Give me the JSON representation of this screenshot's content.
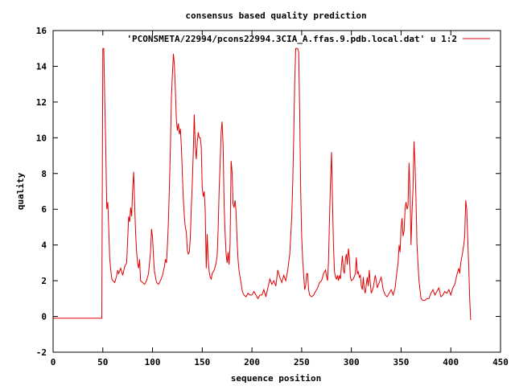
{
  "chart_data": {
    "type": "line",
    "title": "consensus based quality prediction",
    "xlabel": "sequence position",
    "ylabel": "quality",
    "xlim": [
      0,
      450
    ],
    "ylim": [
      -2,
      16
    ],
    "xticks": [
      0,
      50,
      100,
      150,
      200,
      250,
      300,
      350,
      400,
      450
    ],
    "yticks": [
      -2,
      0,
      2,
      4,
      6,
      8,
      10,
      12,
      14,
      16
    ],
    "legend_position": "top-right",
    "grid": false,
    "series": [
      {
        "name": "'PCONSMETA/22994/pcons22994.3CIA_A.ffas.9.pdb.local.dat' u 1:2",
        "color": "#e00000",
        "points": [
          [
            0,
            -0.1
          ],
          [
            48,
            -0.1
          ],
          [
            49,
            -0.1
          ],
          [
            50,
            15
          ],
          [
            51,
            15
          ],
          [
            52,
            12
          ],
          [
            53,
            9.3
          ],
          [
            54,
            6
          ],
          [
            55,
            6.4
          ],
          [
            56,
            4.8
          ],
          [
            57,
            3.2
          ],
          [
            58,
            2.6
          ],
          [
            59,
            2.1
          ],
          [
            60,
            2.0
          ],
          [
            62,
            1.9
          ],
          [
            64,
            2.3
          ],
          [
            65,
            2.6
          ],
          [
            66,
            2.4
          ],
          [
            68,
            2.7
          ],
          [
            70,
            2.3
          ],
          [
            72,
            2.8
          ],
          [
            74,
            3.0
          ],
          [
            76,
            5.6
          ],
          [
            77,
            5.3
          ],
          [
            78,
            6.1
          ],
          [
            79,
            5.6
          ],
          [
            80,
            7.1
          ],
          [
            81,
            8.1
          ],
          [
            82,
            6.3
          ],
          [
            83,
            4.6
          ],
          [
            84,
            3.6
          ],
          [
            85,
            3.0
          ],
          [
            86,
            2.7
          ],
          [
            87,
            3.2
          ],
          [
            88,
            2.0
          ],
          [
            90,
            1.9
          ],
          [
            92,
            1.8
          ],
          [
            94,
            2.0
          ],
          [
            96,
            2.4
          ],
          [
            97,
            3.0
          ],
          [
            98,
            3.6
          ],
          [
            99,
            4.9
          ],
          [
            100,
            4.4
          ],
          [
            101,
            3.3
          ],
          [
            102,
            2.5
          ],
          [
            103,
            2.2
          ],
          [
            104,
            1.9
          ],
          [
            106,
            1.8
          ],
          [
            108,
            2.0
          ],
          [
            110,
            2.3
          ],
          [
            112,
            2.8
          ],
          [
            113,
            3.2
          ],
          [
            114,
            3.0
          ],
          [
            115,
            4.0
          ],
          [
            116,
            5.3
          ],
          [
            117,
            7.4
          ],
          [
            118,
            9.5
          ],
          [
            119,
            12.2
          ],
          [
            120,
            13.6
          ],
          [
            121,
            14.7
          ],
          [
            122,
            14.1
          ],
          [
            123,
            12.6
          ],
          [
            124,
            11.0
          ],
          [
            125,
            10.4
          ],
          [
            126,
            10.8
          ],
          [
            127,
            10.2
          ],
          [
            128,
            10.5
          ],
          [
            129,
            9.5
          ],
          [
            130,
            8.0
          ],
          [
            131,
            6.5
          ],
          [
            132,
            5.6
          ],
          [
            133,
            5.0
          ],
          [
            134,
            4.7
          ],
          [
            135,
            3.7
          ],
          [
            136,
            3.5
          ],
          [
            137,
            3.6
          ],
          [
            138,
            4.4
          ],
          [
            139,
            6.0
          ],
          [
            140,
            7.5
          ],
          [
            141,
            9.2
          ],
          [
            142,
            11.3
          ],
          [
            143,
            9.5
          ],
          [
            144,
            8.8
          ],
          [
            145,
            9.8
          ],
          [
            146,
            10.3
          ],
          [
            147,
            10.0
          ],
          [
            148,
            10.0
          ],
          [
            149,
            9.5
          ],
          [
            150,
            7.2
          ],
          [
            151,
            6.7
          ],
          [
            152,
            7.0
          ],
          [
            153,
            6.0
          ],
          [
            154,
            2.7
          ],
          [
            155,
            4.6
          ],
          [
            156,
            3.2
          ],
          [
            157,
            2.5
          ],
          [
            158,
            2.2
          ],
          [
            159,
            2.1
          ],
          [
            160,
            2.4
          ],
          [
            162,
            2.6
          ],
          [
            164,
            3.0
          ],
          [
            165,
            3.4
          ],
          [
            166,
            4.9
          ],
          [
            167,
            7.0
          ],
          [
            168,
            8.6
          ],
          [
            169,
            10.3
          ],
          [
            170,
            10.9
          ],
          [
            171,
            9.5
          ],
          [
            172,
            6.3
          ],
          [
            173,
            4.6
          ],
          [
            174,
            3.5
          ],
          [
            175,
            3.0
          ],
          [
            176,
            3.6
          ],
          [
            177,
            2.9
          ],
          [
            178,
            4.0
          ],
          [
            179,
            8.7
          ],
          [
            180,
            8.1
          ],
          [
            181,
            6.3
          ],
          [
            182,
            6.1
          ],
          [
            183,
            6.5
          ],
          [
            184,
            5.9
          ],
          [
            185,
            4.3
          ],
          [
            186,
            3.2
          ],
          [
            187,
            2.6
          ],
          [
            188,
            2.2
          ],
          [
            189,
            1.9
          ],
          [
            190,
            1.5
          ],
          [
            191,
            1.3
          ],
          [
            192,
            1.2
          ],
          [
            194,
            1.1
          ],
          [
            196,
            1.3
          ],
          [
            198,
            1.2
          ],
          [
            200,
            1.2
          ],
          [
            202,
            1.4
          ],
          [
            204,
            1.2
          ],
          [
            206,
            1.0
          ],
          [
            208,
            1.2
          ],
          [
            210,
            1.2
          ],
          [
            212,
            1.5
          ],
          [
            214,
            1.1
          ],
          [
            216,
            1.6
          ],
          [
            218,
            2.1
          ],
          [
            220,
            1.8
          ],
          [
            222,
            2.0
          ],
          [
            224,
            1.7
          ],
          [
            226,
            2.6
          ],
          [
            228,
            2.2
          ],
          [
            230,
            1.9
          ],
          [
            232,
            2.3
          ],
          [
            234,
            2.0
          ],
          [
            236,
            2.6
          ],
          [
            238,
            3.5
          ],
          [
            240,
            5.5
          ],
          [
            241,
            7.5
          ],
          [
            242,
            10.0
          ],
          [
            243,
            13.0
          ],
          [
            244,
            15.0
          ],
          [
            246,
            15.0
          ],
          [
            247,
            14.8
          ],
          [
            248,
            11.5
          ],
          [
            249,
            7.0
          ],
          [
            250,
            4.5
          ],
          [
            251,
            3.2
          ],
          [
            252,
            2.3
          ],
          [
            253,
            1.5
          ],
          [
            254,
            1.7
          ],
          [
            255,
            2.4
          ],
          [
            256,
            2.4
          ],
          [
            257,
            1.5
          ],
          [
            258,
            1.2
          ],
          [
            260,
            1.1
          ],
          [
            262,
            1.2
          ],
          [
            264,
            1.4
          ],
          [
            266,
            1.6
          ],
          [
            268,
            1.9
          ],
          [
            270,
            2.0
          ],
          [
            272,
            2.4
          ],
          [
            274,
            2.6
          ],
          [
            276,
            2.0
          ],
          [
            277,
            3.0
          ],
          [
            278,
            5.5
          ],
          [
            279,
            7.5
          ],
          [
            280,
            9.2
          ],
          [
            281,
            6.5
          ],
          [
            282,
            4.0
          ],
          [
            283,
            2.5
          ],
          [
            284,
            2.2
          ],
          [
            285,
            2.1
          ],
          [
            286,
            2.3
          ],
          [
            287,
            2.0
          ],
          [
            288,
            2.3
          ],
          [
            289,
            2.1
          ],
          [
            290,
            2.8
          ],
          [
            291,
            3.4
          ],
          [
            292,
            2.6
          ],
          [
            293,
            2.4
          ],
          [
            294,
            3.2
          ],
          [
            295,
            3.5
          ],
          [
            296,
            2.9
          ],
          [
            297,
            3.8
          ],
          [
            298,
            3.3
          ],
          [
            299,
            2.2
          ],
          [
            300,
            2.0
          ],
          [
            302,
            2.1
          ],
          [
            304,
            2.4
          ],
          [
            305,
            3.3
          ],
          [
            306,
            2.4
          ],
          [
            307,
            2.5
          ],
          [
            308,
            2.2
          ],
          [
            309,
            2.3
          ],
          [
            310,
            1.7
          ],
          [
            311,
            1.5
          ],
          [
            312,
            2.2
          ],
          [
            313,
            1.5
          ],
          [
            314,
            1.3
          ],
          [
            315,
            1.8
          ],
          [
            316,
            2.2
          ],
          [
            317,
            1.7
          ],
          [
            318,
            2.6
          ],
          [
            319,
            1.9
          ],
          [
            320,
            1.3
          ],
          [
            322,
            1.6
          ],
          [
            324,
            2.3
          ],
          [
            325,
            2.0
          ],
          [
            326,
            1.6
          ],
          [
            328,
            1.9
          ],
          [
            330,
            2.2
          ],
          [
            332,
            1.5
          ],
          [
            334,
            1.2
          ],
          [
            336,
            1.1
          ],
          [
            338,
            1.3
          ],
          [
            340,
            1.5
          ],
          [
            342,
            1.2
          ],
          [
            344,
            1.6
          ],
          [
            346,
            2.6
          ],
          [
            347,
            3.0
          ],
          [
            348,
            4.0
          ],
          [
            349,
            3.6
          ],
          [
            350,
            5.0
          ],
          [
            351,
            5.5
          ],
          [
            352,
            4.5
          ],
          [
            353,
            4.8
          ],
          [
            354,
            6.0
          ],
          [
            355,
            6.4
          ],
          [
            356,
            6.0
          ],
          [
            357,
            6.2
          ],
          [
            358,
            8.6
          ],
          [
            359,
            7.0
          ],
          [
            360,
            4.0
          ],
          [
            361,
            5.8
          ],
          [
            362,
            7.2
          ],
          [
            363,
            9.8
          ],
          [
            364,
            8.6
          ],
          [
            365,
            6.5
          ],
          [
            366,
            4.0
          ],
          [
            367,
            3.0
          ],
          [
            368,
            2.0
          ],
          [
            369,
            1.5
          ],
          [
            370,
            1.0
          ],
          [
            372,
            0.9
          ],
          [
            374,
            0.9
          ],
          [
            376,
            1.0
          ],
          [
            378,
            1.0
          ],
          [
            380,
            1.3
          ],
          [
            382,
            1.5
          ],
          [
            384,
            1.2
          ],
          [
            386,
            1.4
          ],
          [
            388,
            1.6
          ],
          [
            390,
            1.1
          ],
          [
            392,
            1.2
          ],
          [
            394,
            1.4
          ],
          [
            396,
            1.3
          ],
          [
            398,
            1.5
          ],
          [
            400,
            1.2
          ],
          [
            402,
            1.6
          ],
          [
            404,
            1.8
          ],
          [
            406,
            2.3
          ],
          [
            408,
            2.7
          ],
          [
            409,
            2.4
          ],
          [
            410,
            3.0
          ],
          [
            411,
            3.3
          ],
          [
            412,
            3.6
          ],
          [
            413,
            4.0
          ],
          [
            414,
            4.5
          ],
          [
            415,
            6.5
          ],
          [
            416,
            6.0
          ],
          [
            417,
            4.4
          ],
          [
            418,
            2.8
          ],
          [
            419,
            1.0
          ],
          [
            420,
            -0.2
          ]
        ]
      }
    ]
  }
}
